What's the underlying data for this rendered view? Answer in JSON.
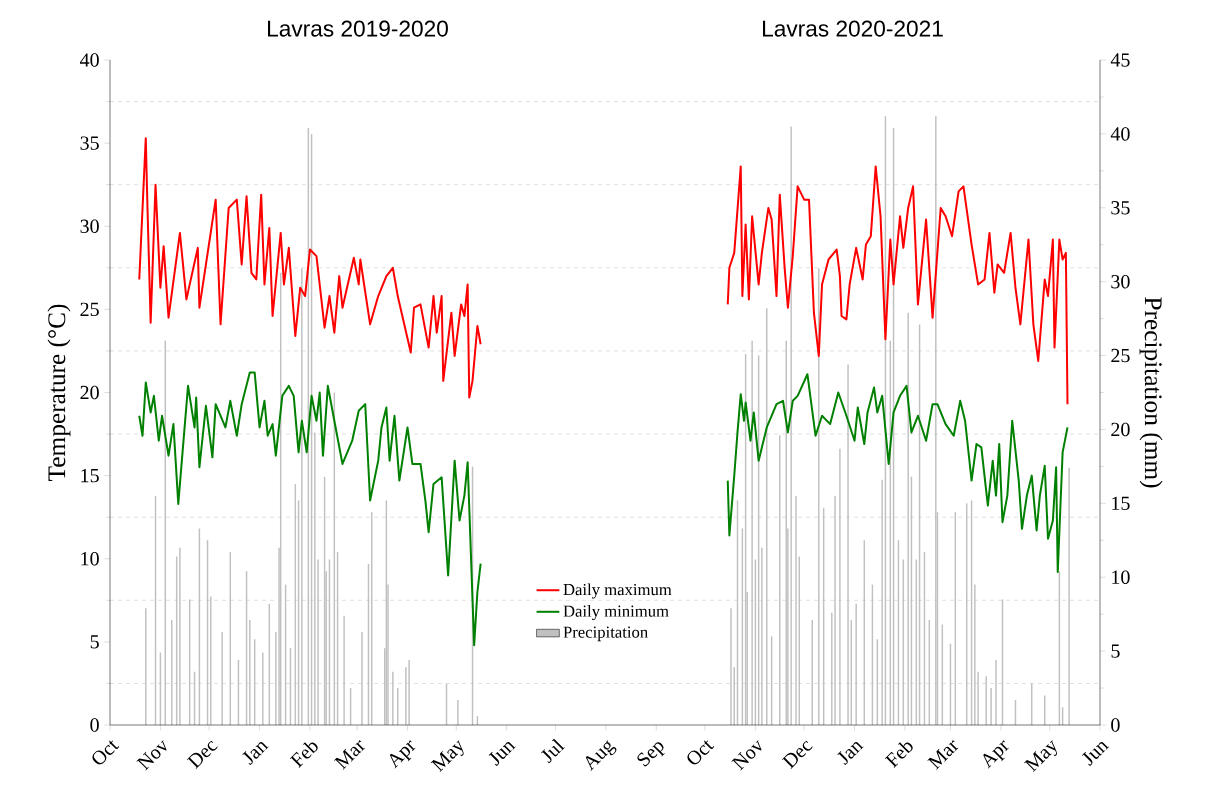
{
  "chart_data": {
    "type": "line",
    "annotations": [
      "Lavras 2019-2020",
      "Lavras 2020-2021"
    ],
    "ylabel": "Temperature (°C)",
    "y2label": "Precipitation (mm)",
    "xlim": [
      "2019-10-01",
      "2021-06-01"
    ],
    "xticks": [
      {
        "value": "2019-10-01",
        "label": "Oct"
      },
      {
        "value": "2019-11-01",
        "label": "Nov"
      },
      {
        "value": "2019-12-01",
        "label": "Dec"
      },
      {
        "value": "2020-01-01",
        "label": "Jan"
      },
      {
        "value": "2020-02-01",
        "label": "Feb"
      },
      {
        "value": "2020-03-01",
        "label": "Mar"
      },
      {
        "value": "2020-04-01",
        "label": "Apr"
      },
      {
        "value": "2020-05-01",
        "label": "May"
      },
      {
        "value": "2020-06-01",
        "label": "Jun"
      },
      {
        "value": "2020-07-01",
        "label": "Jul"
      },
      {
        "value": "2020-08-01",
        "label": "Aug"
      },
      {
        "value": "2020-09-01",
        "label": "Sep"
      },
      {
        "value": "2020-10-01",
        "label": "Oct"
      },
      {
        "value": "2020-11-01",
        "label": "Nov"
      },
      {
        "value": "2020-12-01",
        "label": "Dec"
      },
      {
        "value": "2021-01-01",
        "label": "Jan"
      },
      {
        "value": "2021-02-01",
        "label": "Feb"
      },
      {
        "value": "2021-03-01",
        "label": "Mar"
      },
      {
        "value": "2021-04-01",
        "label": "Apr"
      },
      {
        "value": "2021-05-01",
        "label": "May"
      },
      {
        "value": "2021-06-01",
        "label": "Jun"
      }
    ],
    "ylim": [
      0,
      40
    ],
    "yticks": [
      0,
      5,
      10,
      15,
      20,
      25,
      30,
      35,
      40
    ],
    "y2lim": [
      0,
      45
    ],
    "y2ticks": [
      0,
      5,
      10,
      15,
      20,
      25,
      30,
      35,
      40,
      45
    ],
    "grid": "y",
    "legend": "bottom",
    "series": [
      {
        "name": "Precipitation",
        "type": "bar",
        "axis": "y2",
        "color": "#c0c0c0",
        "x": [
          "2019-10-23",
          "2019-10-29",
          "2019-11-01",
          "2019-11-04",
          "2019-11-08",
          "2019-11-11",
          "2019-11-13",
          "2019-11-19",
          "2019-11-22",
          "2019-11-25",
          "2019-11-30",
          "2019-12-02",
          "2019-12-09",
          "2019-12-14",
          "2019-12-19",
          "2019-12-24",
          "2019-12-26",
          "2019-12-29",
          "2020-01-03",
          "2020-01-07",
          "2020-01-11",
          "2020-01-13",
          "2020-01-14",
          "2020-01-17",
          "2020-01-20",
          "2020-01-23",
          "2020-01-25",
          "2020-01-27",
          "2020-01-31",
          "2020-02-02",
          "2020-02-04",
          "2020-02-06",
          "2020-02-10",
          "2020-02-11",
          "2020-02-13",
          "2020-02-16",
          "2020-02-18",
          "2020-02-22",
          "2020-02-26",
          "2020-03-04",
          "2020-03-08",
          "2020-03-10",
          "2020-03-18",
          "2020-03-19",
          "2020-03-20",
          "2020-03-23",
          "2020-03-26",
          "2020-03-31",
          "2020-04-02",
          "2020-04-25",
          "2020-05-02",
          "2020-05-11",
          "2020-05-14",
          "2020-10-17",
          "2020-10-19",
          "2020-10-21",
          "2020-10-24",
          "2020-10-26",
          "2020-10-27",
          "2020-10-30",
          "2020-11-01",
          "2020-11-03",
          "2020-11-05",
          "2020-11-08",
          "2020-11-11",
          "2020-11-16",
          "2020-11-20",
          "2020-11-21",
          "2020-11-23",
          "2020-11-26",
          "2020-11-28",
          "2020-12-06",
          "2020-12-10",
          "2020-12-13",
          "2020-12-18",
          "2020-12-20",
          "2020-12-23",
          "2020-12-28",
          "2020-12-30",
          "2021-01-02",
          "2021-01-07",
          "2021-01-12",
          "2021-01-15",
          "2021-01-18",
          "2021-01-20",
          "2021-01-23",
          "2021-01-25",
          "2021-01-28",
          "2021-01-31",
          "2021-02-03",
          "2021-02-05",
          "2021-02-08",
          "2021-02-10",
          "2021-02-13",
          "2021-02-16",
          "2021-02-20",
          "2021-02-21",
          "2021-02-24",
          "2021-03-01",
          "2021-03-04",
          "2021-03-11",
          "2021-03-14",
          "2021-03-16",
          "2021-03-18",
          "2021-03-23",
          "2021-03-26",
          "2021-03-29",
          "2021-04-02",
          "2021-04-10",
          "2021-04-20",
          "2021-04-28",
          "2021-05-07",
          "2021-05-09",
          "2021-05-13"
        ],
        "values": [
          7.9,
          15.5,
          4.9,
          26.0,
          7.1,
          11.4,
          12.0,
          8.5,
          3.6,
          13.3,
          12.5,
          8.7,
          6.3,
          11.7,
          4.4,
          10.4,
          7.1,
          5.8,
          4.9,
          8.2,
          6.3,
          12.0,
          30.6,
          9.5,
          5.2,
          16.3,
          15.2,
          30.9,
          40.4,
          40.0,
          19.8,
          11.2,
          16.8,
          10.4,
          11.2,
          22.5,
          11.7,
          7.4,
          2.5,
          6.3,
          10.9,
          14.4,
          5.2,
          15.2,
          9.5,
          3.6,
          2.5,
          3.9,
          4.4,
          2.8,
          1.7,
          17.5,
          0.6,
          7.9,
          3.9,
          15.2,
          13.3,
          25.1,
          9.0,
          26.0,
          11.2,
          25.0,
          12.0,
          28.2,
          6.0,
          19.6,
          26.0,
          13.3,
          40.5,
          15.5,
          11.4,
          7.1,
          30.9,
          14.7,
          7.6,
          15.5,
          18.7,
          24.4,
          7.1,
          8.2,
          12.5,
          9.5,
          5.8,
          16.6,
          41.2,
          26.0,
          40.4,
          12.5,
          11.2,
          27.9,
          16.8,
          11.2,
          27.1,
          11.7,
          7.1,
          41.2,
          14.4,
          6.8,
          5.5,
          14.4,
          15.0,
          15.2,
          9.5,
          3.6,
          3.3,
          2.5,
          4.4,
          8.5,
          1.7,
          2.8,
          2.0,
          10.4,
          1.2,
          17.4
        ]
      },
      {
        "name": "Daily maximum",
        "color": "#ff0000",
        "x": [
          "2019-10-19",
          "2019-10-23",
          "2019-10-24",
          "2019-10-26",
          "2019-10-29",
          "2019-11-01",
          "2019-11-03",
          "2019-11-06",
          "2019-11-13",
          "2019-11-17",
          "2019-11-24",
          "2019-11-25",
          "2019-12-05",
          "2019-12-08",
          "2019-12-13",
          "2019-12-18",
          "2019-12-21",
          "2019-12-24",
          "2019-12-27",
          "2019-12-30",
          "2020-01-02",
          "2020-01-04",
          "2020-01-07",
          "2020-01-09",
          "2020-01-14",
          "2020-01-16",
          "2020-01-19",
          "2020-01-23",
          "2020-01-26",
          "2020-01-29",
          "2020-02-01",
          "2020-02-05",
          "2020-02-10",
          "2020-02-13",
          "2020-02-16",
          "2020-02-19",
          "2020-02-21",
          "2020-02-28",
          "2020-03-02",
          "2020-03-03",
          "2020-03-09",
          "2020-03-14",
          "2020-03-19",
          "2020-03-23",
          "2020-03-26",
          "2020-04-03",
          "2020-04-05",
          "2020-04-09",
          "2020-04-14",
          "2020-04-17",
          "2020-04-19",
          "2020-04-22",
          "2020-04-23",
          "2020-04-28",
          "2020-04-30",
          "2020-05-04",
          "2020-05-06",
          "2020-05-08",
          "2020-05-09",
          "2020-05-11",
          "2020-05-14",
          "2020-05-16",
          "2020-08-01",
          "2020-10-15",
          "2020-10-16",
          "2020-10-19",
          "2020-10-23",
          "2020-10-24",
          "2020-10-26",
          "2020-10-28",
          "2020-10-30",
          "2020-11-03",
          "2020-11-05",
          "2020-11-09",
          "2020-11-11",
          "2020-11-14",
          "2020-11-16",
          "2020-11-19",
          "2020-11-21",
          "2020-11-24",
          "2020-11-27",
          "2020-12-01",
          "2020-12-04",
          "2020-12-07",
          "2020-12-10",
          "2020-12-12",
          "2020-12-16",
          "2020-12-21",
          "2020-12-23",
          "2020-12-24",
          "2020-12-27",
          "2020-12-29",
          "2021-01-02",
          "2021-01-06",
          "2021-01-08",
          "2021-01-11",
          "2021-01-14",
          "2021-01-17",
          "2021-01-20",
          "2021-01-23",
          "2021-01-25",
          "2021-01-29",
          "2021-01-31",
          "2021-02-03",
          "2021-02-06",
          "2021-02-09",
          "2021-02-14",
          "2021-02-18",
          "2021-02-23",
          "2021-02-26",
          "2021-03-02",
          "2021-03-06",
          "2021-03-09",
          "2021-03-14",
          "2021-03-18",
          "2021-03-22",
          "2021-03-25",
          "2021-03-28",
          "2021-03-30",
          "2021-04-03",
          "2021-04-07",
          "2021-04-10",
          "2021-04-13",
          "2021-04-18",
          "2021-04-21",
          "2021-04-24",
          "2021-04-28",
          "2021-04-30",
          "2021-05-03",
          "2021-05-04",
          "2021-05-07",
          "2021-05-09",
          "2021-05-11",
          "2021-05-12"
        ],
        "values": [
          26.8,
          35.3,
          31.3,
          24.2,
          32.5,
          26.3,
          28.8,
          24.5,
          29.6,
          25.6,
          28.7,
          25.1,
          31.6,
          24.1,
          31.1,
          31.6,
          27.7,
          31.8,
          27.2,
          26.8,
          31.9,
          26.5,
          29.9,
          24.6,
          29.6,
          26.5,
          28.7,
          23.4,
          26.3,
          25.8,
          28.6,
          28.2,
          23.9,
          25.8,
          23.6,
          27.0,
          25.1,
          28.1,
          26.5,
          28.0,
          24.1,
          25.8,
          27.0,
          27.5,
          25.8,
          22.4,
          25.1,
          25.3,
          22.7,
          25.8,
          23.6,
          25.8,
          20.7,
          24.8,
          22.2,
          25.3,
          24.6,
          26.5,
          19.7,
          20.7,
          24.0,
          22.9,
          null,
          25.3,
          27.5,
          28.4,
          33.6,
          25.8,
          30.1,
          25.6,
          30.6,
          26.5,
          28.4,
          31.1,
          30.4,
          25.8,
          31.9,
          27.5,
          25.1,
          28.2,
          32.4,
          31.6,
          31.6,
          24.8,
          22.2,
          26.5,
          28.0,
          28.6,
          27.0,
          24.6,
          24.4,
          26.5,
          28.7,
          26.8,
          28.9,
          29.4,
          33.6,
          30.6,
          23.2,
          29.2,
          26.5,
          30.6,
          28.7,
          31.1,
          32.4,
          25.3,
          30.4,
          24.5,
          31.1,
          30.6,
          29.4,
          32.1,
          32.4,
          28.9,
          26.5,
          26.8,
          29.6,
          26.0,
          27.7,
          27.2,
          29.6,
          26.3,
          24.1,
          29.2,
          24.1,
          21.9,
          26.8,
          25.8,
          29.2,
          22.7,
          29.2,
          28.0,
          28.4,
          19.3
        ]
      },
      {
        "name": "Daily minimum",
        "color": "#008000",
        "x": [
          "2019-10-19",
          "2019-10-21",
          "2019-10-23",
          "2019-10-26",
          "2019-10-28",
          "2019-10-31",
          "2019-11-02",
          "2019-11-06",
          "2019-11-09",
          "2019-11-12",
          "2019-11-18",
          "2019-11-22",
          "2019-11-23",
          "2019-11-25",
          "2019-11-29",
          "2019-12-03",
          "2019-12-05",
          "2019-12-11",
          "2019-12-14",
          "2019-12-18",
          "2019-12-21",
          "2019-12-26",
          "2019-12-29",
          "2020-01-01",
          "2020-01-04",
          "2020-01-06",
          "2020-01-09",
          "2020-01-11",
          "2020-01-15",
          "2020-01-19",
          "2020-01-22",
          "2020-01-25",
          "2020-01-27",
          "2020-01-30",
          "2020-02-02",
          "2020-02-05",
          "2020-02-07",
          "2020-02-09",
          "2020-02-12",
          "2020-02-16",
          "2020-02-21",
          "2020-02-27",
          "2020-03-02",
          "2020-03-06",
          "2020-03-09",
          "2020-03-14",
          "2020-03-16",
          "2020-03-19",
          "2020-03-21",
          "2020-03-24",
          "2020-03-27",
          "2020-04-01",
          "2020-04-04",
          "2020-04-09",
          "2020-04-12",
          "2020-04-14",
          "2020-04-17",
          "2020-04-22",
          "2020-04-26",
          "2020-04-30",
          "2020-05-03",
          "2020-05-06",
          "2020-05-08",
          "2020-05-12",
          "2020-05-14",
          "2020-05-16",
          "2020-08-01",
          "2020-10-15",
          "2020-10-16",
          "2020-10-19",
          "2020-10-21",
          "2020-10-23",
          "2020-10-25",
          "2020-10-26",
          "2020-10-29",
          "2020-10-31",
          "2020-11-03",
          "2020-11-08",
          "2020-11-14",
          "2020-11-18",
          "2020-11-21",
          "2020-11-24",
          "2020-11-27",
          "2020-12-03",
          "2020-12-08",
          "2020-12-12",
          "2020-12-17",
          "2020-12-22",
          "2020-12-27",
          "2021-01-01",
          "2021-01-03",
          "2021-01-07",
          "2021-01-09",
          "2021-01-13",
          "2021-01-15",
          "2021-01-18",
          "2021-01-22",
          "2021-01-25",
          "2021-01-29",
          "2021-02-02",
          "2021-02-05",
          "2021-02-09",
          "2021-02-14",
          "2021-02-18",
          "2021-02-21",
          "2021-02-26",
          "2021-03-03",
          "2021-03-07",
          "2021-03-10",
          "2021-03-14",
          "2021-03-17",
          "2021-03-20",
          "2021-03-24",
          "2021-03-27",
          "2021-03-29",
          "2021-03-31",
          "2021-04-02",
          "2021-04-05",
          "2021-04-08",
          "2021-04-12",
          "2021-04-14",
          "2021-04-17",
          "2021-04-20",
          "2021-04-23",
          "2021-04-25",
          "2021-04-28",
          "2021-04-30",
          "2021-05-03",
          "2021-05-05",
          "2021-05-06",
          "2021-05-09",
          "2021-05-10",
          "2021-05-12"
        ],
        "values": [
          18.6,
          17.4,
          20.6,
          18.8,
          19.8,
          17.1,
          18.6,
          16.2,
          18.1,
          13.3,
          20.4,
          17.9,
          19.7,
          15.5,
          19.2,
          16.1,
          19.3,
          17.9,
          19.5,
          17.4,
          19.3,
          21.2,
          21.2,
          17.9,
          19.5,
          17.4,
          18.1,
          16.2,
          19.8,
          20.4,
          19.8,
          16.4,
          18.3,
          16.4,
          19.8,
          18.3,
          20.0,
          16.2,
          20.4,
          18.3,
          15.7,
          17.1,
          18.9,
          19.3,
          13.5,
          15.9,
          17.9,
          19.1,
          15.9,
          18.6,
          14.7,
          17.9,
          15.7,
          15.7,
          13.5,
          11.6,
          14.5,
          14.9,
          9.0,
          15.9,
          12.3,
          13.8,
          15.8,
          4.8,
          8.0,
          9.7,
          null,
          14.7,
          11.4,
          15.0,
          17.6,
          19.9,
          18.3,
          19.4,
          17.1,
          18.8,
          15.9,
          17.9,
          19.3,
          19.5,
          17.6,
          19.5,
          19.8,
          21.1,
          17.4,
          18.6,
          18.1,
          20.0,
          18.6,
          17.1,
          19.1,
          16.9,
          18.8,
          20.3,
          18.8,
          19.8,
          15.7,
          18.8,
          19.8,
          20.4,
          17.6,
          18.6,
          17.1,
          19.3,
          19.3,
          18.1,
          17.4,
          19.5,
          18.3,
          14.7,
          16.9,
          16.7,
          13.2,
          15.9,
          13.8,
          16.9,
          12.2,
          13.8,
          18.3,
          14.7,
          11.8,
          13.8,
          15.0,
          11.7,
          13.8,
          15.6,
          11.2,
          12.3,
          15.5,
          9.2,
          16.4,
          16.9,
          17.9
        ]
      }
    ]
  }
}
